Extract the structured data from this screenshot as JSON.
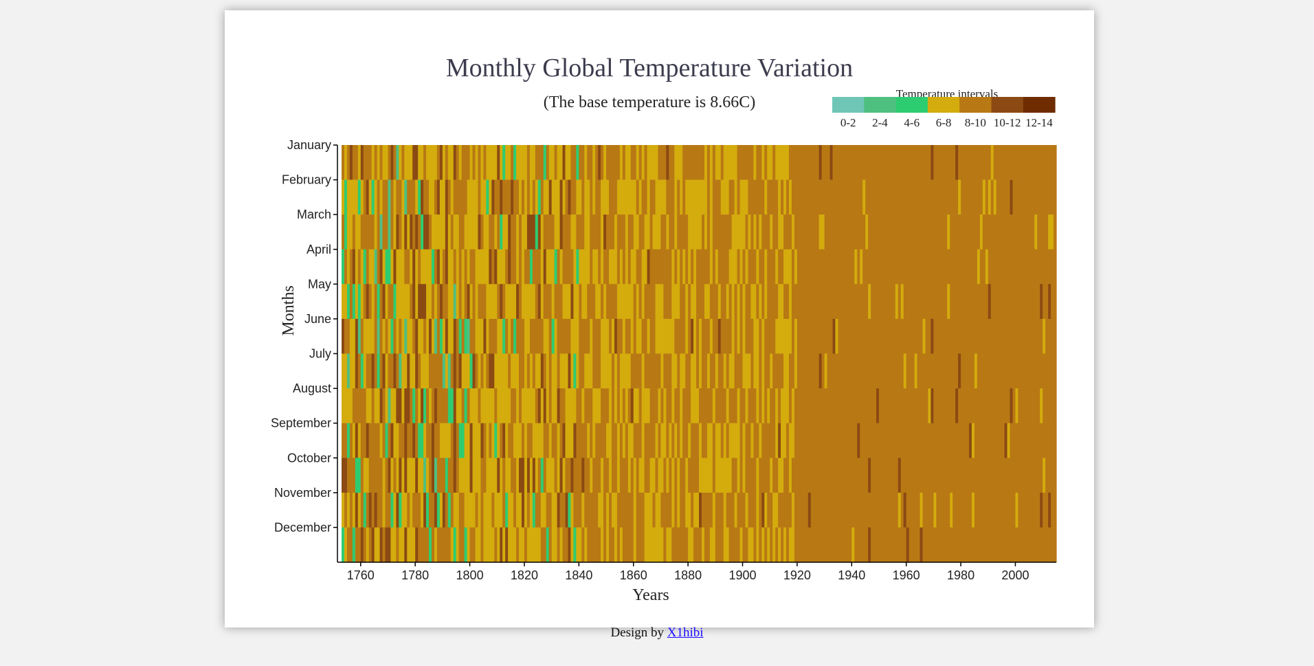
{
  "chart_data": {
    "type": "heatmap",
    "title": "Monthly Global Temperature Variation",
    "subtitle": "(The base temperature is 8.66C)",
    "xlabel": "Years",
    "ylabel": "Months",
    "x_range": [
      1753,
      2015
    ],
    "x_ticks": [
      "1760",
      "1780",
      "1800",
      "1820",
      "1840",
      "1860",
      "1880",
      "1900",
      "1920",
      "1940",
      "1960",
      "1980",
      "2000"
    ],
    "months": [
      "January",
      "February",
      "March",
      "April",
      "May",
      "June",
      "July",
      "August",
      "September",
      "October",
      "November",
      "December"
    ],
    "legend": {
      "title": "Temperature intervals",
      "entries": [
        {
          "label": "0-2",
          "color": "#6fc6b6"
        },
        {
          "label": "2-4",
          "color": "#4fbf80"
        },
        {
          "label": "4-6",
          "color": "#2ecc71"
        },
        {
          "label": "6-8",
          "color": "#d4ac0d"
        },
        {
          "label": "8-10",
          "color": "#b87814"
        },
        {
          "label": "10-12",
          "color": "#8b4a13"
        },
        {
          "label": "12-14",
          "color": "#6e2c00"
        }
      ]
    },
    "grid": false
  },
  "footer": {
    "prefix": "Design by ",
    "link_text": "X1hibi"
  }
}
